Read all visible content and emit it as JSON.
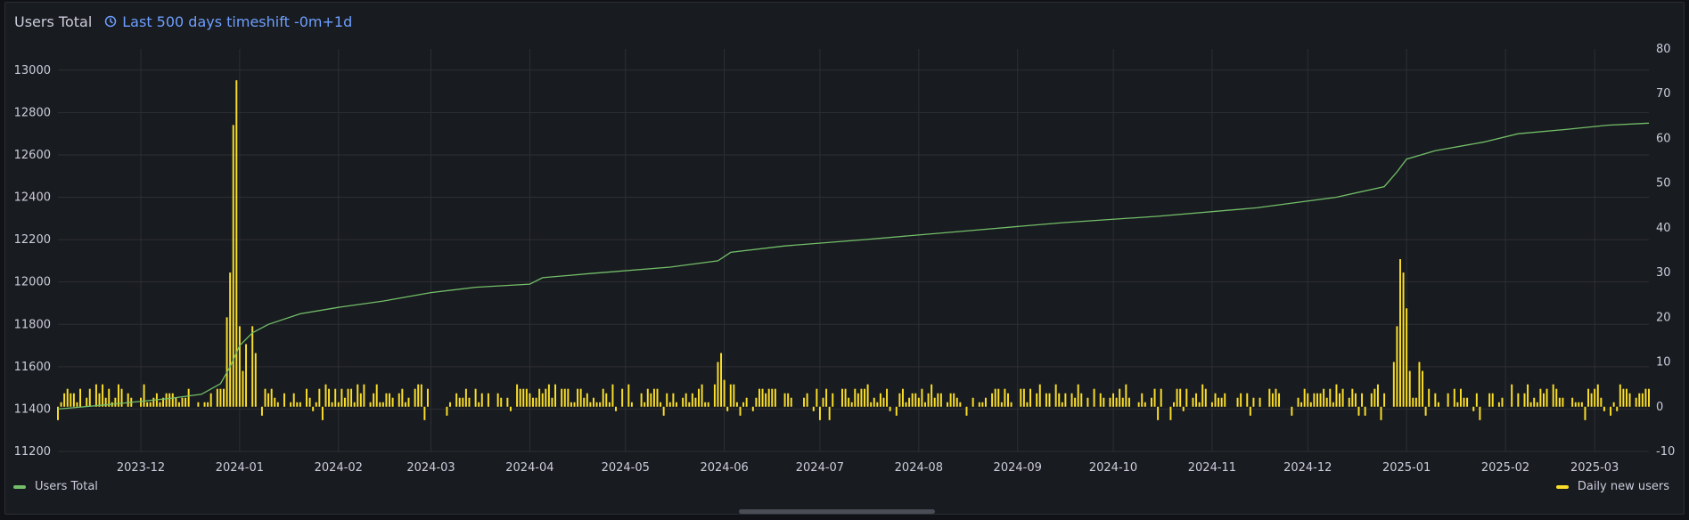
{
  "panel": {
    "title": "Users Total",
    "timeshift_label": "Last 500 days timeshift -0m+1d"
  },
  "legend": {
    "left_label": "Users Total",
    "right_label": "Daily new users"
  },
  "colors": {
    "users_total": "#73bf69",
    "daily_new_users": "#fade2a",
    "grid": "#2c2f35",
    "text": "#ccccdc",
    "link": "#6e9fff"
  },
  "chart_data": {
    "type": "line+bar",
    "x_start": "2023-11-05",
    "x_end": "2025-03-18",
    "x_tick_labels": [
      "2023-12",
      "2024-01",
      "2024-02",
      "2024-03",
      "2024-04",
      "2024-05",
      "2024-06",
      "2024-07",
      "2024-08",
      "2024-09",
      "2024-10",
      "2024-11",
      "2024-12",
      "2025-01",
      "2025-02",
      "2025-03"
    ],
    "x_tick_dates": [
      "2023-12-01",
      "2024-01-01",
      "2024-02-01",
      "2024-03-01",
      "2024-04-01",
      "2024-05-01",
      "2024-06-01",
      "2024-07-01",
      "2024-08-01",
      "2024-09-01",
      "2024-10-01",
      "2024-11-01",
      "2024-12-01",
      "2025-01-01",
      "2025-02-01",
      "2025-03-01"
    ],
    "y_left": {
      "min": 11200,
      "max": 13100,
      "ticks": [
        11200,
        11400,
        11600,
        11800,
        12000,
        12200,
        12400,
        12600,
        12800,
        13000
      ]
    },
    "y_right": {
      "min": -10,
      "max": 80,
      "ticks": [
        -10,
        0,
        10,
        20,
        30,
        40,
        50,
        60,
        70,
        80
      ]
    },
    "series": [
      {
        "name": "Users Total",
        "axis": "left",
        "style": "line",
        "points": [
          [
            "2023-11-05",
            11400
          ],
          [
            "2023-11-20",
            11420
          ],
          [
            "2023-12-10",
            11450
          ],
          [
            "2023-12-20",
            11470
          ],
          [
            "2023-12-26",
            11520
          ],
          [
            "2023-12-29",
            11600
          ],
          [
            "2024-01-01",
            11700
          ],
          [
            "2024-01-05",
            11760
          ],
          [
            "2024-01-10",
            11800
          ],
          [
            "2024-01-20",
            11850
          ],
          [
            "2024-02-01",
            11880
          ],
          [
            "2024-02-15",
            11910
          ],
          [
            "2024-03-01",
            11950
          ],
          [
            "2024-03-15",
            11975
          ],
          [
            "2024-04-01",
            11990
          ],
          [
            "2024-04-05",
            12020
          ],
          [
            "2024-04-20",
            12040
          ],
          [
            "2024-05-15",
            12070
          ],
          [
            "2024-05-30",
            12100
          ],
          [
            "2024-06-03",
            12140
          ],
          [
            "2024-06-20",
            12170
          ],
          [
            "2024-07-15",
            12200
          ],
          [
            "2024-08-15",
            12240
          ],
          [
            "2024-09-15",
            12280
          ],
          [
            "2024-10-15",
            12310
          ],
          [
            "2024-11-15",
            12350
          ],
          [
            "2024-12-10",
            12400
          ],
          [
            "2024-12-25",
            12450
          ],
          [
            "2024-12-29",
            12520
          ],
          [
            "2025-01-01",
            12580
          ],
          [
            "2025-01-10",
            12620
          ],
          [
            "2025-01-25",
            12660
          ],
          [
            "2025-02-05",
            12700
          ],
          [
            "2025-02-20",
            12720
          ],
          [
            "2025-03-05",
            12740
          ],
          [
            "2025-03-18",
            12750
          ]
        ]
      },
      {
        "name": "Daily new users",
        "axis": "right",
        "style": "bars",
        "spikes": [
          [
            "2023-12-28",
            20
          ],
          [
            "2023-12-29",
            30
          ],
          [
            "2023-12-30",
            63
          ],
          [
            "2023-12-31",
            73
          ],
          [
            "2024-01-01",
            18
          ],
          [
            "2024-01-02",
            8
          ],
          [
            "2024-01-03",
            14
          ],
          [
            "2024-01-05",
            18
          ],
          [
            "2024-01-06",
            12
          ],
          [
            "2024-05-30",
            10
          ],
          [
            "2024-05-31",
            12
          ],
          [
            "2024-06-01",
            6
          ],
          [
            "2024-12-28",
            10
          ],
          [
            "2024-12-29",
            18
          ],
          [
            "2024-12-30",
            33
          ],
          [
            "2024-12-31",
            30
          ],
          [
            "2025-01-01",
            22
          ],
          [
            "2025-01-02",
            8
          ],
          [
            "2025-01-05",
            10
          ],
          [
            "2025-01-06",
            8
          ]
        ],
        "typical_daily_range": [
          0,
          5
        ]
      }
    ]
  }
}
